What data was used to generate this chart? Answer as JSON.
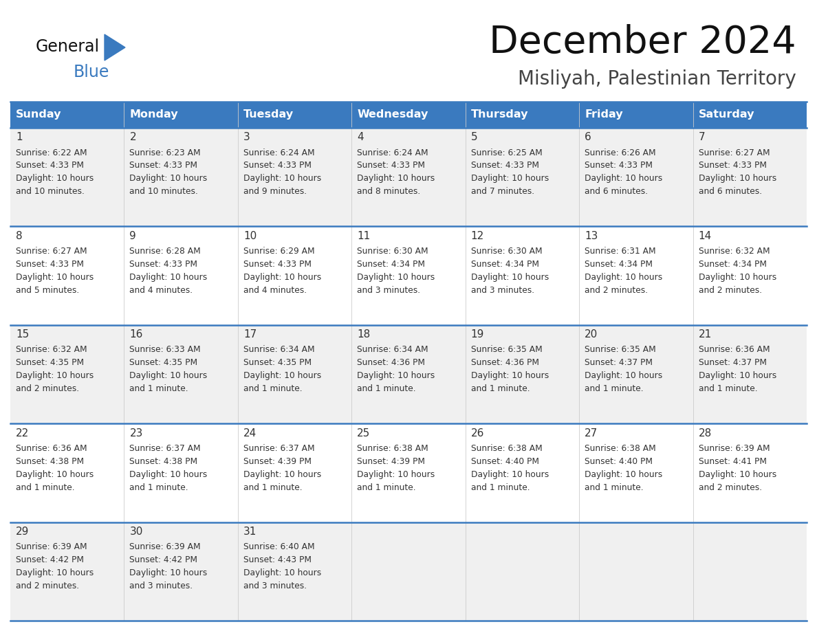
{
  "title": "December 2024",
  "subtitle": "Misliyah, Palestinian Territory",
  "days_of_week": [
    "Sunday",
    "Monday",
    "Tuesday",
    "Wednesday",
    "Thursday",
    "Friday",
    "Saturday"
  ],
  "header_bg": "#3a7abf",
  "header_text_color": "#ffffff",
  "row_bg_odd": "#f0f0f0",
  "row_bg_even": "#ffffff",
  "cell_text_color": "#333333",
  "day_num_color": "#333333",
  "line_color": "#3a7abf",
  "calendar_data": [
    [
      {
        "day": 1,
        "sunrise": "6:22 AM",
        "sunset": "4:33 PM",
        "daylight": "10 hours and 10 minutes."
      },
      {
        "day": 2,
        "sunrise": "6:23 AM",
        "sunset": "4:33 PM",
        "daylight": "10 hours and 10 minutes."
      },
      {
        "day": 3,
        "sunrise": "6:24 AM",
        "sunset": "4:33 PM",
        "daylight": "10 hours and 9 minutes."
      },
      {
        "day": 4,
        "sunrise": "6:24 AM",
        "sunset": "4:33 PM",
        "daylight": "10 hours and 8 minutes."
      },
      {
        "day": 5,
        "sunrise": "6:25 AM",
        "sunset": "4:33 PM",
        "daylight": "10 hours and 7 minutes."
      },
      {
        "day": 6,
        "sunrise": "6:26 AM",
        "sunset": "4:33 PM",
        "daylight": "10 hours and 6 minutes."
      },
      {
        "day": 7,
        "sunrise": "6:27 AM",
        "sunset": "4:33 PM",
        "daylight": "10 hours and 6 minutes."
      }
    ],
    [
      {
        "day": 8,
        "sunrise": "6:27 AM",
        "sunset": "4:33 PM",
        "daylight": "10 hours and 5 minutes."
      },
      {
        "day": 9,
        "sunrise": "6:28 AM",
        "sunset": "4:33 PM",
        "daylight": "10 hours and 4 minutes."
      },
      {
        "day": 10,
        "sunrise": "6:29 AM",
        "sunset": "4:33 PM",
        "daylight": "10 hours and 4 minutes."
      },
      {
        "day": 11,
        "sunrise": "6:30 AM",
        "sunset": "4:34 PM",
        "daylight": "10 hours and 3 minutes."
      },
      {
        "day": 12,
        "sunrise": "6:30 AM",
        "sunset": "4:34 PM",
        "daylight": "10 hours and 3 minutes."
      },
      {
        "day": 13,
        "sunrise": "6:31 AM",
        "sunset": "4:34 PM",
        "daylight": "10 hours and 2 minutes."
      },
      {
        "day": 14,
        "sunrise": "6:32 AM",
        "sunset": "4:34 PM",
        "daylight": "10 hours and 2 minutes."
      }
    ],
    [
      {
        "day": 15,
        "sunrise": "6:32 AM",
        "sunset": "4:35 PM",
        "daylight": "10 hours and 2 minutes."
      },
      {
        "day": 16,
        "sunrise": "6:33 AM",
        "sunset": "4:35 PM",
        "daylight": "10 hours and 1 minute."
      },
      {
        "day": 17,
        "sunrise": "6:34 AM",
        "sunset": "4:35 PM",
        "daylight": "10 hours and 1 minute."
      },
      {
        "day": 18,
        "sunrise": "6:34 AM",
        "sunset": "4:36 PM",
        "daylight": "10 hours and 1 minute."
      },
      {
        "day": 19,
        "sunrise": "6:35 AM",
        "sunset": "4:36 PM",
        "daylight": "10 hours and 1 minute."
      },
      {
        "day": 20,
        "sunrise": "6:35 AM",
        "sunset": "4:37 PM",
        "daylight": "10 hours and 1 minute."
      },
      {
        "day": 21,
        "sunrise": "6:36 AM",
        "sunset": "4:37 PM",
        "daylight": "10 hours and 1 minute."
      }
    ],
    [
      {
        "day": 22,
        "sunrise": "6:36 AM",
        "sunset": "4:38 PM",
        "daylight": "10 hours and 1 minute."
      },
      {
        "day": 23,
        "sunrise": "6:37 AM",
        "sunset": "4:38 PM",
        "daylight": "10 hours and 1 minute."
      },
      {
        "day": 24,
        "sunrise": "6:37 AM",
        "sunset": "4:39 PM",
        "daylight": "10 hours and 1 minute."
      },
      {
        "day": 25,
        "sunrise": "6:38 AM",
        "sunset": "4:39 PM",
        "daylight": "10 hours and 1 minute."
      },
      {
        "day": 26,
        "sunrise": "6:38 AM",
        "sunset": "4:40 PM",
        "daylight": "10 hours and 1 minute."
      },
      {
        "day": 27,
        "sunrise": "6:38 AM",
        "sunset": "4:40 PM",
        "daylight": "10 hours and 1 minute."
      },
      {
        "day": 28,
        "sunrise": "6:39 AM",
        "sunset": "4:41 PM",
        "daylight": "10 hours and 2 minutes."
      }
    ],
    [
      {
        "day": 29,
        "sunrise": "6:39 AM",
        "sunset": "4:42 PM",
        "daylight": "10 hours and 2 minutes."
      },
      {
        "day": 30,
        "sunrise": "6:39 AM",
        "sunset": "4:42 PM",
        "daylight": "10 hours and 3 minutes."
      },
      {
        "day": 31,
        "sunrise": "6:40 AM",
        "sunset": "4:43 PM",
        "daylight": "10 hours and 3 minutes."
      },
      null,
      null,
      null,
      null
    ]
  ],
  "logo_color1": "#111111",
  "logo_color2": "#3a7abf",
  "logo_triangle_color": "#3a7abf",
  "fig_width": 11.88,
  "fig_height": 9.18,
  "dpi": 100
}
